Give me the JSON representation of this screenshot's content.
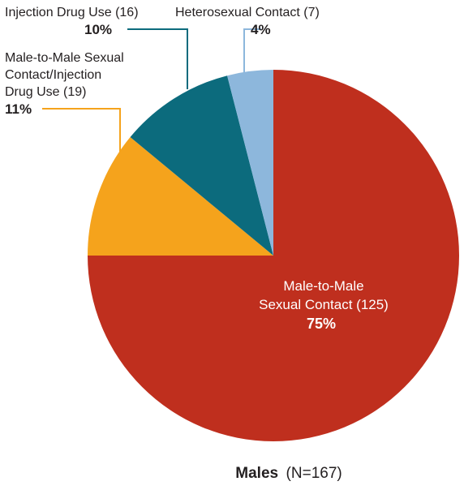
{
  "chart_data": {
    "type": "pie",
    "title": "Males",
    "subtitle": "(N=167)",
    "slices": [
      {
        "key": "mm",
        "name_lines": [
          "Male-to-Male",
          "Sexual Contact (125)"
        ],
        "count": 125,
        "percent_label": "75%",
        "value": 0.75,
        "color": "#bf2f1e"
      },
      {
        "key": "mmidu",
        "name_lines": [
          "Male-to-Male Sexual",
          "Contact/Injection",
          "Drug Use (19)"
        ],
        "count": 19,
        "percent_label": "11%",
        "value": 0.11,
        "color": "#f5a31c"
      },
      {
        "key": "idu",
        "name_lines": [
          "Injection Drug Use (16)"
        ],
        "count": 16,
        "percent_label": "10%",
        "value": 0.1,
        "color": "#0c6b7d"
      },
      {
        "key": "het",
        "name_lines": [
          "Heterosexual Contact (7)"
        ],
        "count": 7,
        "percent_label": "4%",
        "value": 0.04,
        "color": "#8db7dc"
      }
    ]
  }
}
